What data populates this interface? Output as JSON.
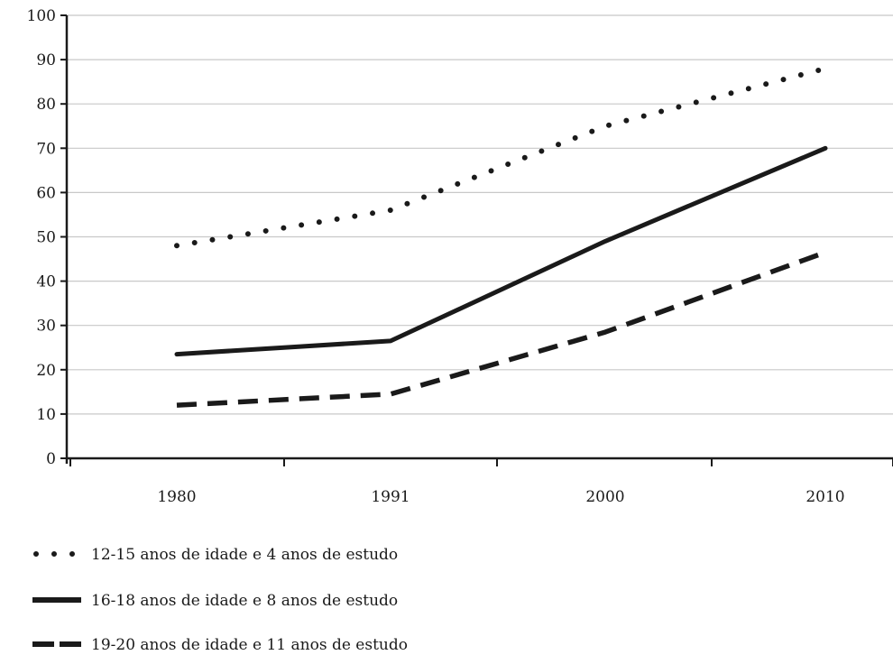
{
  "chart_data": {
    "type": "line",
    "x": [
      "1980",
      "1991",
      "2000",
      "2010"
    ],
    "ylim": [
      0,
      100
    ],
    "yticks": [
      0,
      10,
      20,
      30,
      40,
      50,
      60,
      70,
      80,
      90,
      100
    ],
    "grid": "horizontal",
    "legend_placement": "bottom-left",
    "series": [
      {
        "name": "12-15 anos de idade e 4 anos de estudo",
        "style": "dotted",
        "values": [
          48,
          56,
          75,
          88
        ]
      },
      {
        "name": "16-18 anos de idade e 8 anos de estudo",
        "style": "solid",
        "values": [
          23.5,
          26.5,
          49,
          70
        ]
      },
      {
        "name": "19-20 anos de idade e 11 anos de estudo",
        "style": "dashed",
        "values": [
          12,
          14.5,
          28.5,
          46.5
        ]
      }
    ],
    "colors": {
      "line": "#1a1a1a",
      "grid": "#c8c8c8"
    }
  }
}
